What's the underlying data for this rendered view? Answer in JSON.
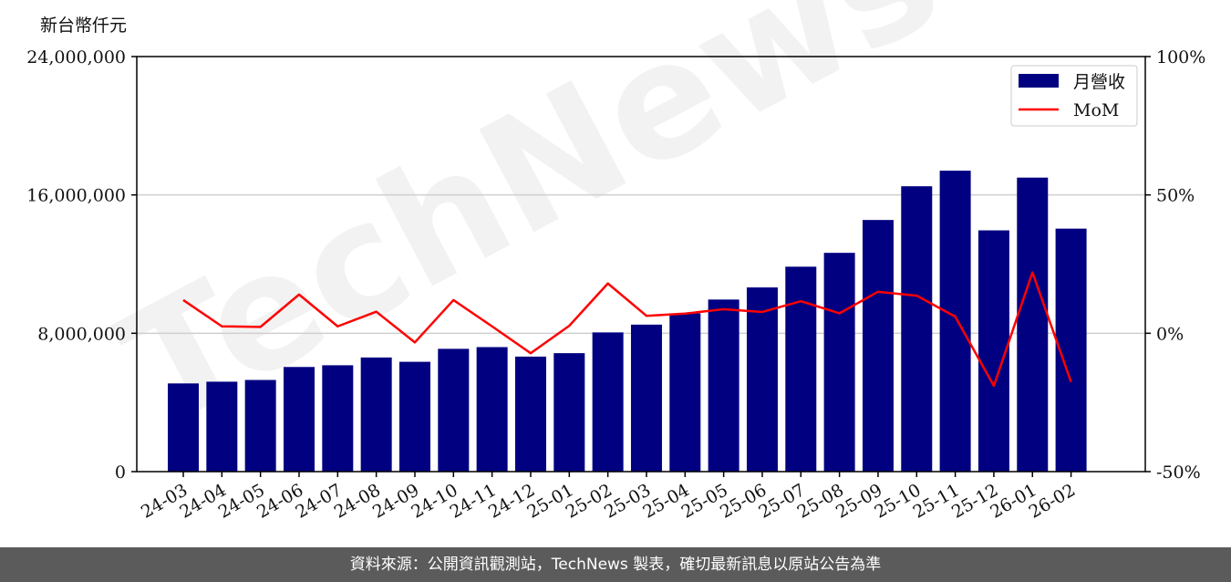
{
  "chart_data": {
    "type": "bar",
    "unit_label": "新台幣仟元",
    "categories": [
      "24-03",
      "24-04",
      "24-05",
      "24-06",
      "24-07",
      "24-08",
      "24-09",
      "24-10",
      "24-11",
      "24-12",
      "25-01",
      "25-02",
      "25-03",
      "25-04",
      "25-05",
      "25-06",
      "25-07",
      "25-08",
      "25-09",
      "25-10",
      "25-11",
      "25-12",
      "26-01",
      "26-02"
    ],
    "series": [
      {
        "name": "月營收",
        "type": "bar",
        "axis": "left",
        "color": "#000080",
        "values": [
          5100000,
          5200000,
          5300000,
          6050000,
          6150000,
          6600000,
          6350000,
          7100000,
          7200000,
          6650000,
          6850000,
          8050000,
          8500000,
          9150000,
          9950000,
          10650000,
          11850000,
          12650000,
          14550000,
          16500000,
          17400000,
          13950000,
          17000000,
          14050000
        ]
      },
      {
        "name": "MoM",
        "type": "line",
        "axis": "right",
        "color": "#ff0000",
        "values": [
          12,
          2.5,
          2.3,
          14,
          2.5,
          7.8,
          -3.3,
          12,
          2.5,
          -7.2,
          2.7,
          18,
          6.3,
          7.1,
          8.7,
          7.7,
          11.6,
          7.2,
          15,
          13.6,
          6,
          -19,
          22,
          -17.6
        ]
      }
    ],
    "ylim_left": [
      0,
      24000000
    ],
    "yticks_left": [
      0,
      8000000,
      16000000,
      24000000
    ],
    "yticks_left_labels": [
      "0",
      "8,000,000",
      "16,000,000",
      "24,000,000"
    ],
    "ylim_right": [
      -50,
      100
    ],
    "yticks_right": [
      -50,
      0,
      50,
      100
    ],
    "yticks_right_labels": [
      "-50%",
      "0%",
      "50%",
      "100%"
    ],
    "grid": "horizontal",
    "legend_position": "top-right",
    "watermark": "TechNews"
  },
  "footer": {
    "text": "資料來源：公開資訊觀測站，TechNews 製表，確切最新訊息以原站公告為準"
  }
}
